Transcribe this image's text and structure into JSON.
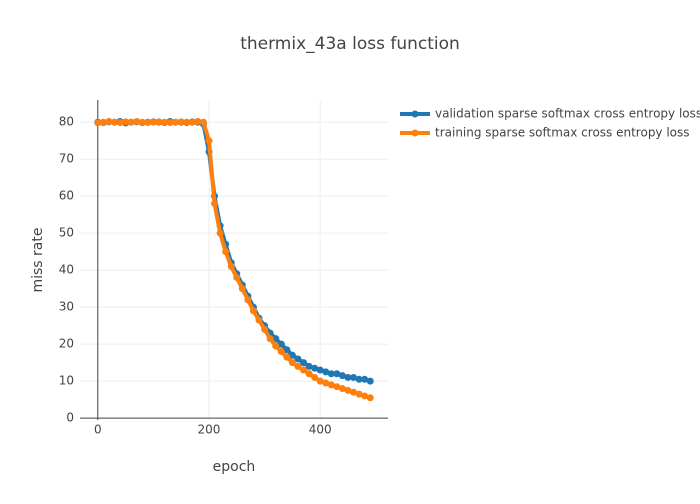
{
  "chart_data": {
    "type": "line",
    "title": "thermix_43a loss function",
    "xlabel": "epoch",
    "ylabel": "miss rate",
    "x": [
      0,
      10,
      20,
      30,
      40,
      50,
      60,
      70,
      80,
      90,
      100,
      110,
      120,
      130,
      140,
      150,
      160,
      170,
      180,
      190,
      200,
      210,
      220,
      230,
      240,
      250,
      260,
      270,
      280,
      290,
      300,
      310,
      320,
      330,
      340,
      350,
      360,
      370,
      380,
      390,
      400,
      410,
      420,
      430,
      440,
      450,
      460,
      470,
      480,
      490
    ],
    "series": [
      {
        "name": "validation sparse softmax cross entropy loss",
        "color": "#1f77b4",
        "values": [
          80,
          79.9,
          80.1,
          80,
          80.2,
          79.8,
          80,
          80.1,
          79.9,
          80,
          80.1,
          80,
          79.9,
          80.2,
          80,
          80,
          79.9,
          80.1,
          80,
          79.5,
          72,
          60,
          52,
          47,
          42,
          39,
          36,
          33,
          30,
          27,
          25,
          23,
          21.5,
          20,
          18.5,
          17,
          16,
          15,
          14,
          13.5,
          13,
          12.5,
          12,
          12,
          11.5,
          11,
          11,
          10.5,
          10.5,
          10
        ]
      },
      {
        "name": "training sparse softmax cross entropy loss",
        "color": "#ff7f0e",
        "values": [
          79.8,
          80,
          80.2,
          80,
          79.9,
          80.1,
          80,
          80.2,
          80,
          79.9,
          80,
          80.1,
          80,
          79.9,
          80,
          80.1,
          80,
          80,
          80.2,
          80,
          75,
          58,
          50,
          45,
          41,
          38,
          35,
          32,
          29,
          26.5,
          24,
          21.5,
          19.5,
          18,
          16.5,
          15,
          14,
          13,
          12,
          11,
          10,
          9.5,
          9,
          8.5,
          8,
          7.5,
          7,
          6.5,
          6,
          5.5
        ]
      }
    ],
    "xlim": [
      -32,
      522
    ],
    "ylim": [
      -0.5,
      86
    ],
    "xticks": [
      0,
      200,
      400
    ],
    "yticks": [
      0,
      10,
      20,
      30,
      40,
      50,
      60,
      70,
      80
    ],
    "grid": true,
    "zeroline": true,
    "legend": "outside-right"
  }
}
